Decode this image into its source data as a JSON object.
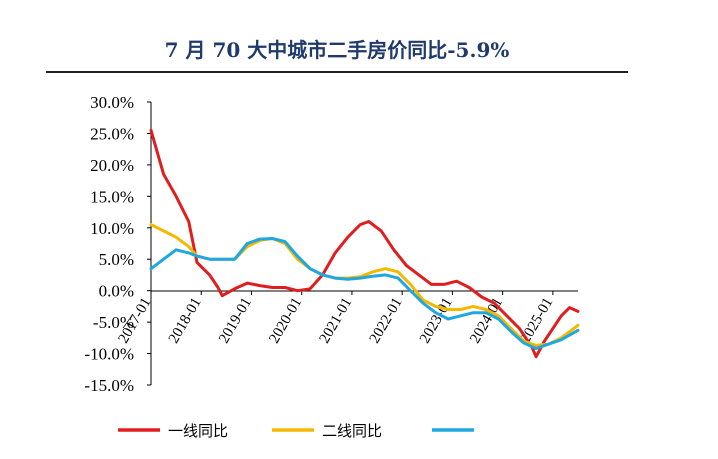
{
  "chart_data": {
    "type": "line",
    "title": "7 月 70 大中城市二手房价同比-5.9%",
    "ylim": [
      -15,
      30
    ],
    "yticks": [
      30,
      25,
      20,
      15,
      10,
      5,
      0,
      -5,
      -10,
      -15
    ],
    "ytick_labels": [
      "30.0%",
      "25.0%",
      "20.0%",
      "15.0%",
      "10.0%",
      "5.0%",
      "0.0%",
      "-5.0%",
      "-10.0%",
      "-15.0%"
    ],
    "xlim": [
      "2017-01",
      "2025-07"
    ],
    "xticks": [
      "2017-01",
      "2018-01",
      "2019-01",
      "2020-01",
      "2021-01",
      "2022-01",
      "2023-01",
      "2024-01",
      "2025-01"
    ],
    "xtick_labels": [
      "2017-01",
      "2018-01",
      "2019-01",
      "2020-01",
      "2021-01",
      "2022-01",
      "2023-01",
      "2024-01",
      "2025-01"
    ],
    "legend_position": "bottom",
    "grid": false,
    "series": [
      {
        "name": "一线同比",
        "color": "#e01e1e",
        "points": [
          [
            "2017-01",
            25.5
          ],
          [
            "2017-04",
            18.5
          ],
          [
            "2017-07",
            15
          ],
          [
            "2017-10",
            11
          ],
          [
            "2017-12",
            4.5
          ],
          [
            "2018-03",
            2.5
          ],
          [
            "2018-05",
            0.5
          ],
          [
            "2018-06",
            -0.8
          ],
          [
            "2018-09",
            0.3
          ],
          [
            "2018-12",
            1.2
          ],
          [
            "2019-03",
            0.8
          ],
          [
            "2019-06",
            0.5
          ],
          [
            "2019-09",
            0.5
          ],
          [
            "2019-12",
            0
          ],
          [
            "2020-03",
            0.3
          ],
          [
            "2020-06",
            2.5
          ],
          [
            "2020-09",
            6
          ],
          [
            "2020-12",
            8.5
          ],
          [
            "2021-03",
            10.5
          ],
          [
            "2021-05",
            11
          ],
          [
            "2021-08",
            9.5
          ],
          [
            "2021-11",
            6.5
          ],
          [
            "2022-02",
            4
          ],
          [
            "2022-05",
            2.5
          ],
          [
            "2022-08",
            1
          ],
          [
            "2022-11",
            1
          ],
          [
            "2023-02",
            1.5
          ],
          [
            "2023-05",
            0.5
          ],
          [
            "2023-08",
            -1
          ],
          [
            "2023-11",
            -2
          ],
          [
            "2024-02",
            -4
          ],
          [
            "2024-05",
            -6
          ],
          [
            "2024-07",
            -8
          ],
          [
            "2024-08",
            -9
          ],
          [
            "2024-09",
            -10.5
          ],
          [
            "2024-11",
            -8
          ],
          [
            "2025-01",
            -6
          ],
          [
            "2025-03",
            -4
          ],
          [
            "2025-05",
            -2.7
          ],
          [
            "2025-07",
            -3.3
          ]
        ]
      },
      {
        "name": "二线同比",
        "color": "#f5b800",
        "points": [
          [
            "2017-01",
            10.5
          ],
          [
            "2017-04",
            9.5
          ],
          [
            "2017-07",
            8.5
          ],
          [
            "2017-10",
            7
          ],
          [
            "2017-12",
            5.5
          ],
          [
            "2018-03",
            5
          ],
          [
            "2018-06",
            5
          ],
          [
            "2018-09",
            5
          ],
          [
            "2018-12",
            7
          ],
          [
            "2019-03",
            8
          ],
          [
            "2019-06",
            8.3
          ],
          [
            "2019-09",
            7.5
          ],
          [
            "2019-12",
            5
          ],
          [
            "2020-03",
            3.5
          ],
          [
            "2020-06",
            2.5
          ],
          [
            "2020-09",
            2
          ],
          [
            "2020-12",
            2
          ],
          [
            "2021-03",
            2.2
          ],
          [
            "2021-06",
            3
          ],
          [
            "2021-09",
            3.5
          ],
          [
            "2021-12",
            3
          ],
          [
            "2022-03",
            1
          ],
          [
            "2022-06",
            -1.5
          ],
          [
            "2022-09",
            -2.5
          ],
          [
            "2022-12",
            -3
          ],
          [
            "2023-03",
            -3
          ],
          [
            "2023-06",
            -2.5
          ],
          [
            "2023-09",
            -3
          ],
          [
            "2023-12",
            -4
          ],
          [
            "2024-03",
            -6
          ],
          [
            "2024-06",
            -8
          ],
          [
            "2024-09",
            -8.7
          ],
          [
            "2024-12",
            -8.5
          ],
          [
            "2025-03",
            -7.5
          ],
          [
            "2025-07",
            -5.5
          ]
        ]
      },
      {
        "name": "",
        "color": "#1fa7e0",
        "points": [
          [
            "2017-01",
            3.5
          ],
          [
            "2017-04",
            5
          ],
          [
            "2017-07",
            6.5
          ],
          [
            "2017-10",
            6
          ],
          [
            "2017-12",
            5.5
          ],
          [
            "2018-03",
            5
          ],
          [
            "2018-06",
            5
          ],
          [
            "2018-09",
            5
          ],
          [
            "2018-12",
            7.5
          ],
          [
            "2019-03",
            8.2
          ],
          [
            "2019-06",
            8.3
          ],
          [
            "2019-09",
            7.8
          ],
          [
            "2019-12",
            5.5
          ],
          [
            "2020-03",
            3.5
          ],
          [
            "2020-06",
            2.5
          ],
          [
            "2020-09",
            2
          ],
          [
            "2020-12",
            1.8
          ],
          [
            "2021-03",
            2
          ],
          [
            "2021-06",
            2.3
          ],
          [
            "2021-09",
            2.5
          ],
          [
            "2021-12",
            2
          ],
          [
            "2022-03",
            0
          ],
          [
            "2022-06",
            -2
          ],
          [
            "2022-09",
            -3.5
          ],
          [
            "2022-12",
            -4.5
          ],
          [
            "2023-03",
            -4
          ],
          [
            "2023-06",
            -3.5
          ],
          [
            "2023-09",
            -3.5
          ],
          [
            "2023-12",
            -4.5
          ],
          [
            "2024-03",
            -6.5
          ],
          [
            "2024-06",
            -8.3
          ],
          [
            "2024-09",
            -9.2
          ],
          [
            "2024-12",
            -8.5
          ],
          [
            "2025-03",
            -7.8
          ],
          [
            "2025-07",
            -6.3
          ]
        ]
      }
    ]
  }
}
